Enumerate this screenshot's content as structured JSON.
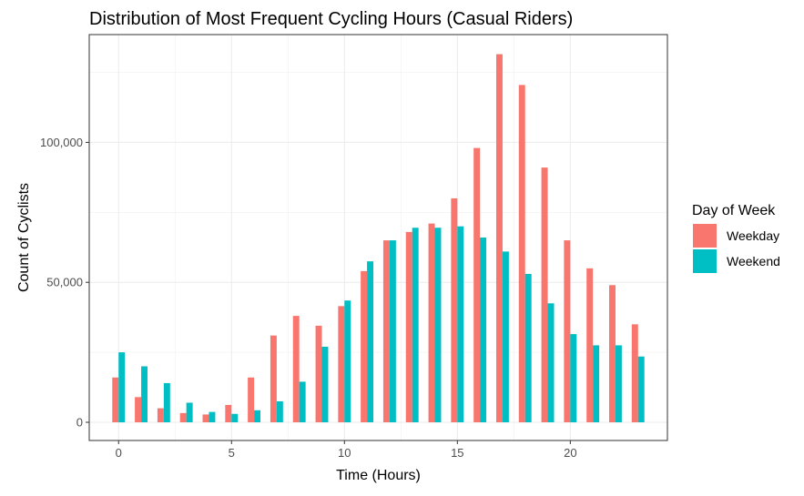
{
  "chart_data": {
    "type": "bar",
    "title": "Distribution of Most Frequent Cycling Hours (Casual Riders)",
    "xlabel": "Time (Hours)",
    "ylabel": "Count of Cyclists",
    "x": [
      0,
      1,
      2,
      3,
      4,
      5,
      6,
      7,
      8,
      9,
      10,
      11,
      12,
      13,
      14,
      15,
      16,
      17,
      18,
      19,
      20,
      21,
      22,
      23
    ],
    "xlim": [
      -1.3,
      24.3
    ],
    "ylim": [
      -6500,
      138500
    ],
    "x_ticks": [
      0,
      5,
      10,
      15,
      20
    ],
    "x_tick_labels": [
      "0",
      "5",
      "10",
      "15",
      "20"
    ],
    "y_ticks": [
      0,
      50000,
      100000
    ],
    "y_tick_labels": [
      "0",
      "50,000",
      "100,000"
    ],
    "grid": true,
    "legend": {
      "title": "Day of Week",
      "position": "right"
    },
    "series": [
      {
        "name": "Weekday",
        "color": "#F8766D",
        "values": [
          16000,
          9000,
          5000,
          3300,
          2800,
          6200,
          16000,
          31000,
          38000,
          34500,
          41500,
          54000,
          65000,
          68000,
          71000,
          80000,
          98000,
          131500,
          120500,
          91000,
          65000,
          55000,
          49000,
          35000
        ]
      },
      {
        "name": "Weekend",
        "color": "#00BFC4",
        "values": [
          25000,
          20000,
          14000,
          7000,
          3700,
          3000,
          4300,
          7500,
          14500,
          27000,
          43500,
          57500,
          65000,
          69500,
          69500,
          70000,
          66000,
          61000,
          53000,
          42500,
          31500,
          27500,
          27500,
          23500
        ]
      }
    ]
  }
}
